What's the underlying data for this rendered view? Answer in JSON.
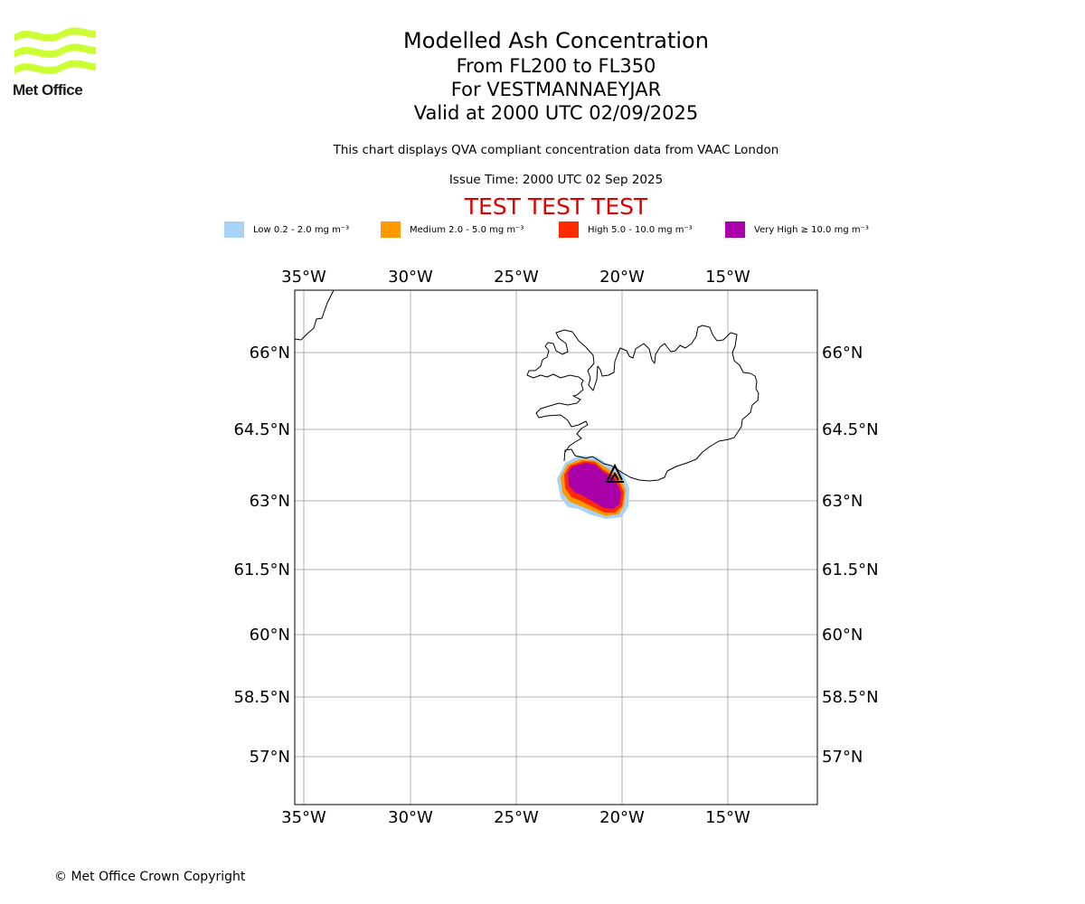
{
  "logo": {
    "text": "Met Office",
    "color": "#ccff33"
  },
  "title": {
    "line1": "Modelled Ash Concentration",
    "line2": "From FL200 to FL350",
    "line3": "For VESTMANNAEYJAR",
    "line4": "Valid at 2000 UTC 02/09/2025"
  },
  "subtitle": "This chart displays QVA compliant concentration data from VAAC London",
  "issue_time": "Issue Time: 2000 UTC 02 Sep 2025",
  "test_banner": "TEST TEST TEST",
  "legend": [
    {
      "label": "Low 0.2 - 2.0 mg m⁻³",
      "color": "#a6d3f6"
    },
    {
      "label": "Medium 2.0 - 5.0 mg m⁻³",
      "color": "#ff9900"
    },
    {
      "label": "High 5.0 - 10.0 mg m⁻³",
      "color": "#ff2a00"
    },
    {
      "label": "Very High ≥ 10.0 mg m⁻³",
      "color": "#aa00aa"
    }
  ],
  "map": {
    "lon_labels": [
      "35°W",
      "30°W",
      "25°W",
      "20°W",
      "15°W"
    ],
    "lat_labels": [
      "66°N",
      "64.5°N",
      "63°N",
      "61.5°N",
      "60°N",
      "58.5°N",
      "57°N"
    ],
    "volcano_marker": "volcano-symbol"
  },
  "copyright": "© Met Office Crown Copyright"
}
